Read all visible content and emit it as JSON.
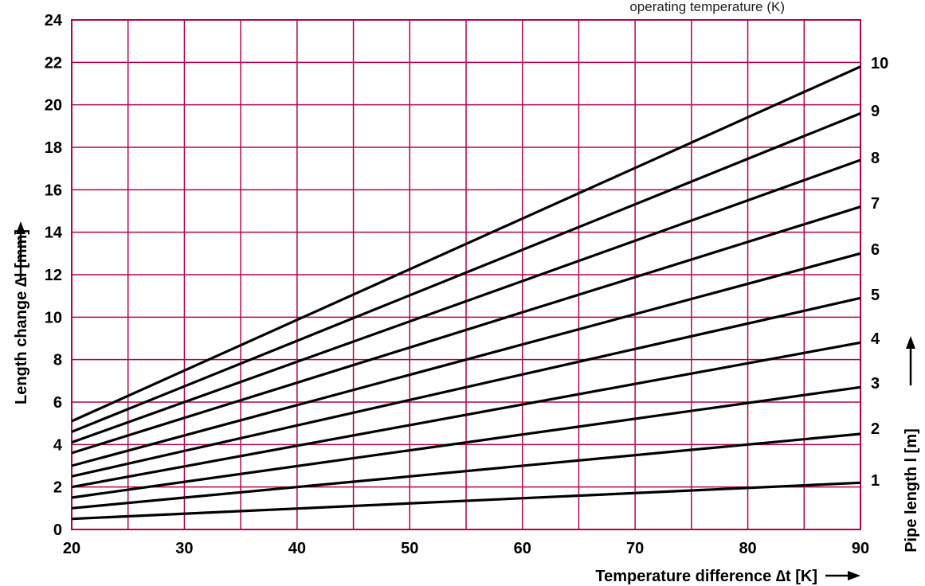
{
  "chart_data": {
    "type": "line",
    "subtitle": "operating temperature (K)",
    "xlabel": "Temperature difference ∆t [K]",
    "ylabel": "Length change ∆l [mm]",
    "y2label": "Pipe length l [m]",
    "xlim": [
      20,
      90
    ],
    "ylim": [
      0,
      24
    ],
    "x_ticks": [
      "20",
      "30",
      "40",
      "50",
      "60",
      "70",
      "80",
      "90"
    ],
    "y_ticks": [
      "0",
      "2",
      "4",
      "6",
      "8",
      "10",
      "12",
      "14",
      "16",
      "18",
      "20",
      "22",
      "24"
    ],
    "grid": true,
    "grid_color": "#b5004f",
    "line_color": "#000000",
    "x_grid_step": 5,
    "y_grid_step": 2,
    "series": [
      {
        "name": "1",
        "x": [
          20,
          90
        ],
        "y": [
          0.5,
          2.2
        ]
      },
      {
        "name": "2",
        "x": [
          20,
          90
        ],
        "y": [
          1.0,
          4.5
        ]
      },
      {
        "name": "3",
        "x": [
          20,
          90
        ],
        "y": [
          1.5,
          6.7
        ]
      },
      {
        "name": "4",
        "x": [
          20,
          90
        ],
        "y": [
          2.0,
          8.8
        ]
      },
      {
        "name": "5",
        "x": [
          20,
          90
        ],
        "y": [
          2.5,
          10.9
        ]
      },
      {
        "name": "6",
        "x": [
          20,
          90
        ],
        "y": [
          3.0,
          13.0
        ]
      },
      {
        "name": "7",
        "x": [
          20,
          90
        ],
        "y": [
          3.6,
          15.2
        ]
      },
      {
        "name": "8",
        "x": [
          20,
          90
        ],
        "y": [
          4.1,
          17.4
        ]
      },
      {
        "name": "9",
        "x": [
          20,
          90
        ],
        "y": [
          4.6,
          19.6
        ]
      },
      {
        "name": "10",
        "x": [
          20,
          90
        ],
        "y": [
          5.1,
          21.8
        ]
      }
    ],
    "right_labels": [
      "1",
      "2",
      "3",
      "4",
      "5",
      "6",
      "7",
      "8",
      "9",
      "10"
    ]
  }
}
